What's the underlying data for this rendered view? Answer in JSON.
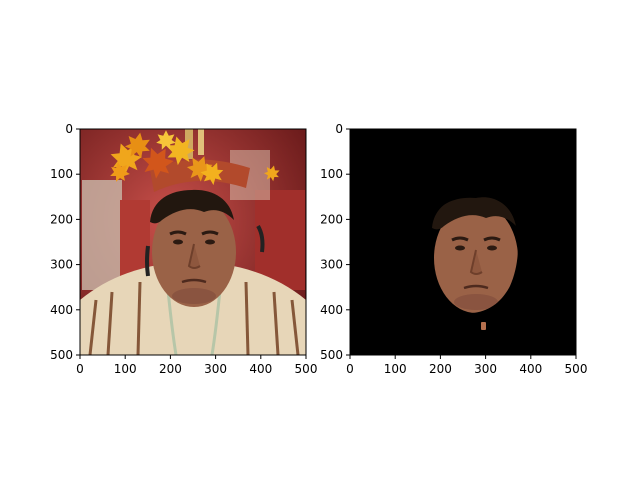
{
  "figure": {
    "background": "#ffffff"
  },
  "chart_data": [
    {
      "type": "image",
      "title": "",
      "xlabel": "",
      "ylabel": "",
      "xlim": [
        0,
        500
      ],
      "ylim": [
        500,
        0
      ],
      "xticks": [
        "0",
        "100",
        "200",
        "300",
        "400",
        "500"
      ],
      "yticks": [
        "0",
        "100",
        "200",
        "300",
        "400",
        "500"
      ],
      "content": "photo-with-leaf-overlay"
    },
    {
      "type": "image",
      "title": "",
      "xlabel": "",
      "ylabel": "",
      "xlim": [
        0,
        500
      ],
      "ylim": [
        500,
        0
      ],
      "xticks": [
        "0",
        "100",
        "200",
        "300",
        "400",
        "500"
      ],
      "yticks": [
        "0",
        "100",
        "200",
        "300",
        "400",
        "500"
      ],
      "content": "face-mask-on-black"
    }
  ],
  "colors": {
    "background_red": "#8e2a26",
    "skin": "#9a6247",
    "hair": "#22170f",
    "poncho": "#e7d6b8",
    "stripe_brown": "#7b4a2c",
    "leaf_orange": "#f0a61c",
    "leaf_red": "#d2561b",
    "mask_black": "#000000"
  }
}
